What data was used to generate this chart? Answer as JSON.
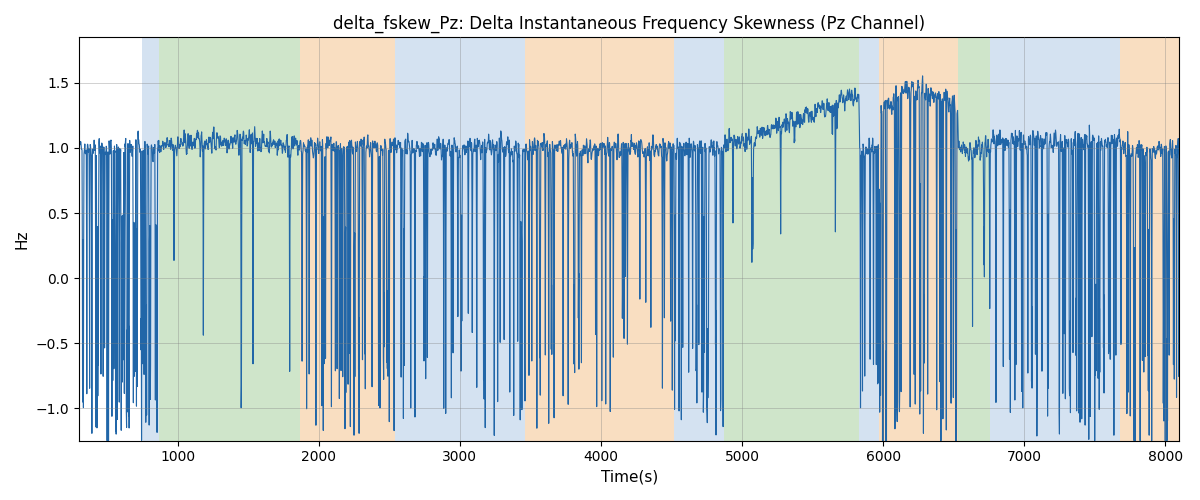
{
  "title": "delta_fskew_Pz: Delta Instantaneous Frequency Skewness (Pz Channel)",
  "xlabel": "Time(s)",
  "ylabel": "Hz",
  "xlim": [
    300,
    8100
  ],
  "ylim": [
    -1.25,
    1.85
  ],
  "line_color": "#2166a8",
  "line_width": 0.8,
  "bg_bands": [
    {
      "xstart": 750,
      "xend": 870,
      "color": "#b8d0e8",
      "alpha": 0.6
    },
    {
      "xstart": 870,
      "xend": 1870,
      "color": "#a8d0a0",
      "alpha": 0.55
    },
    {
      "xstart": 1870,
      "xend": 2540,
      "color": "#f5c898",
      "alpha": 0.6
    },
    {
      "xstart": 2540,
      "xend": 3460,
      "color": "#b8d0e8",
      "alpha": 0.6
    },
    {
      "xstart": 3460,
      "xend": 4520,
      "color": "#f5c898",
      "alpha": 0.6
    },
    {
      "xstart": 4520,
      "xend": 4870,
      "color": "#b8d0e8",
      "alpha": 0.6
    },
    {
      "xstart": 4870,
      "xend": 5830,
      "color": "#a8d0a0",
      "alpha": 0.55
    },
    {
      "xstart": 5830,
      "xend": 5970,
      "color": "#b8d0e8",
      "alpha": 0.6
    },
    {
      "xstart": 5970,
      "xend": 6530,
      "color": "#f5c898",
      "alpha": 0.6
    },
    {
      "xstart": 6530,
      "xend": 6760,
      "color": "#a8d0a0",
      "alpha": 0.55
    },
    {
      "xstart": 6760,
      "xend": 7370,
      "color": "#b8d0e8",
      "alpha": 0.6
    },
    {
      "xstart": 7370,
      "xend": 7680,
      "color": "#b8d0e8",
      "alpha": 0.6
    },
    {
      "xstart": 7680,
      "xend": 8100,
      "color": "#f5c898",
      "alpha": 0.6
    }
  ],
  "seed": 42,
  "t_start": 300,
  "t_end": 8100,
  "dt": 2
}
